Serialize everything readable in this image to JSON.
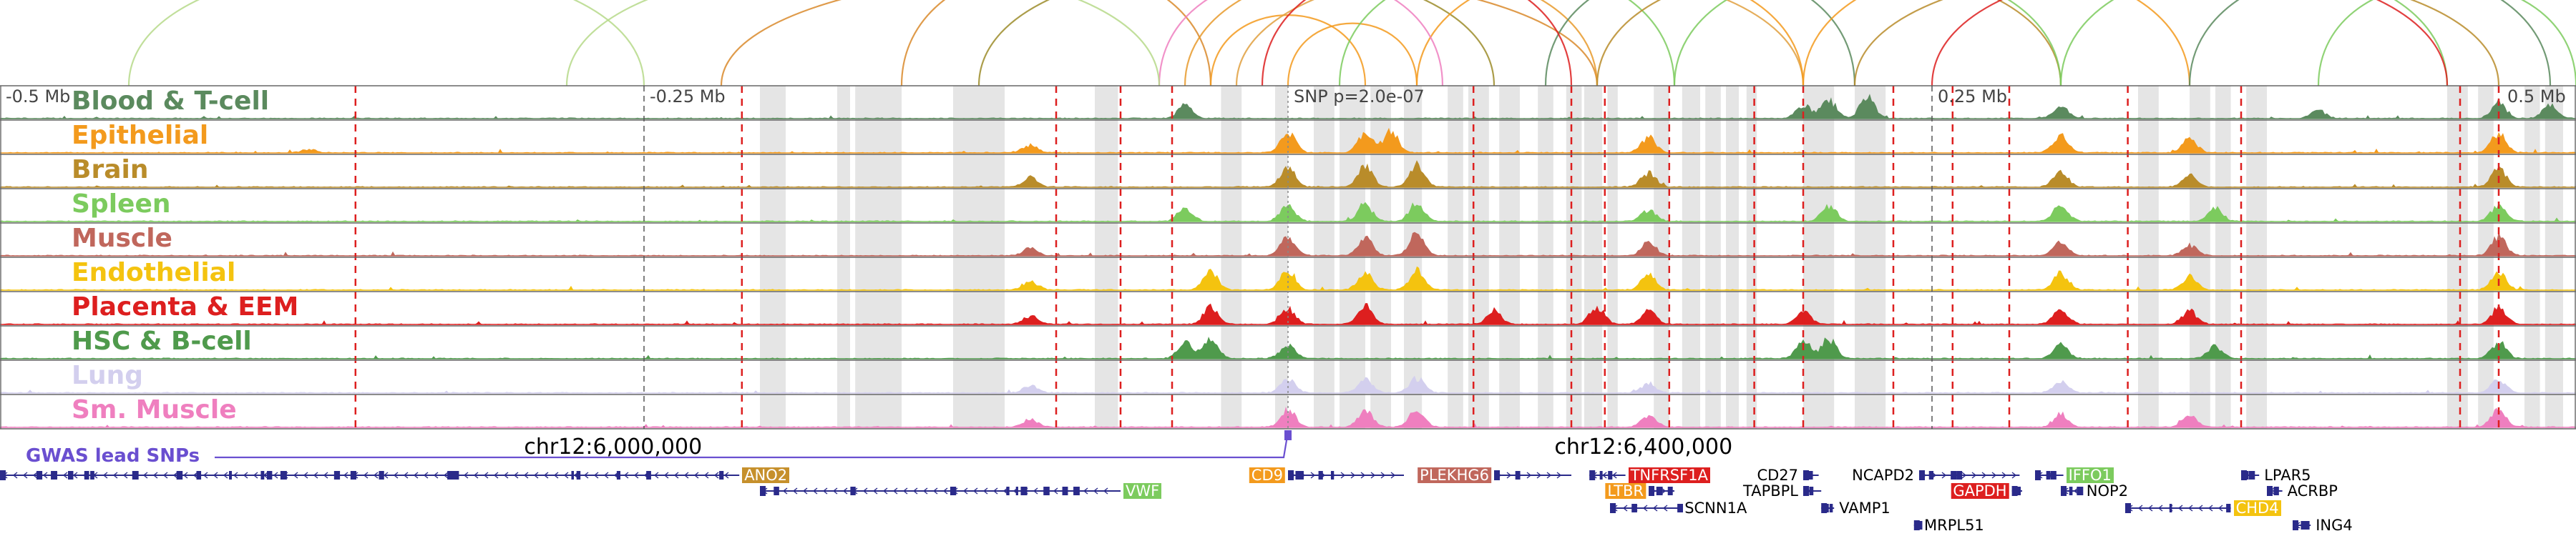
{
  "chart_data": {
    "type": "genome-browser",
    "locus_chromosome": "chr12",
    "x_range_relative_mb": [
      -0.5,
      0.5
    ],
    "relative_axis": [
      {
        "pos": -0.5,
        "label": "-0.5 Mb"
      },
      {
        "pos": -0.25,
        "label": "-0.25 Mb"
      },
      {
        "pos": 0.0,
        "label": "SNP p=2.0e-07"
      },
      {
        "pos": 0.25,
        "label": "0.25 Mb"
      },
      {
        "pos": 0.5,
        "label": "0.5 Mb"
      }
    ],
    "coordinate_axis": [
      {
        "pos": -0.296,
        "label": "chr12:6,000,000"
      },
      {
        "pos": 0.104,
        "label": "chr12:6,400,000"
      }
    ],
    "tracks": [
      {
        "name": "Blood & T-cell",
        "color": "#5b8a5e",
        "peaks": [
          [
            -0.04,
            0.55
          ],
          [
            0.2,
            0.6
          ],
          [
            0.21,
            0.8
          ],
          [
            0.225,
            0.95
          ],
          [
            0.3,
            0.5
          ],
          [
            0.4,
            0.35
          ],
          [
            0.47,
            0.7
          ],
          [
            0.49,
            0.6
          ]
        ]
      },
      {
        "name": "Epithelial",
        "color": "#f39a1d",
        "peaks": [
          [
            -0.38,
            0.15
          ],
          [
            -0.1,
            0.35
          ],
          [
            0.0,
            0.9
          ],
          [
            0.03,
            0.85
          ],
          [
            0.04,
            0.95
          ],
          [
            0.14,
            0.7
          ],
          [
            0.3,
            0.75
          ],
          [
            0.35,
            0.6
          ],
          [
            0.47,
            0.85
          ]
        ]
      },
      {
        "name": "Brain",
        "color": "#b98c2a",
        "peaks": [
          [
            -0.1,
            0.4
          ],
          [
            0.0,
            0.85
          ],
          [
            0.03,
            0.9
          ],
          [
            0.05,
            0.95
          ],
          [
            0.14,
            0.6
          ],
          [
            0.3,
            0.65
          ],
          [
            0.35,
            0.5
          ],
          [
            0.47,
            0.8
          ]
        ]
      },
      {
        "name": "Spleen",
        "color": "#7ccb5e",
        "peaks": [
          [
            -0.04,
            0.55
          ],
          [
            0.0,
            0.7
          ],
          [
            0.03,
            0.75
          ],
          [
            0.05,
            0.8
          ],
          [
            0.14,
            0.5
          ],
          [
            0.21,
            0.7
          ],
          [
            0.3,
            0.7
          ],
          [
            0.36,
            0.55
          ],
          [
            0.47,
            0.75
          ]
        ]
      },
      {
        "name": "Muscle",
        "color": "#c0675c",
        "peaks": [
          [
            -0.1,
            0.3
          ],
          [
            0.0,
            0.8
          ],
          [
            0.03,
            0.75
          ],
          [
            0.05,
            0.95
          ],
          [
            0.14,
            0.55
          ],
          [
            0.3,
            0.6
          ],
          [
            0.35,
            0.45
          ],
          [
            0.47,
            0.85
          ]
        ]
      },
      {
        "name": "Endothelial",
        "color": "#f4c30f",
        "peaks": [
          [
            -0.1,
            0.4
          ],
          [
            -0.03,
            0.8
          ],
          [
            0.0,
            0.85
          ],
          [
            0.03,
            0.8
          ],
          [
            0.05,
            0.9
          ],
          [
            0.14,
            0.65
          ],
          [
            0.3,
            0.7
          ],
          [
            0.35,
            0.6
          ],
          [
            0.47,
            0.8
          ]
        ]
      },
      {
        "name": "Placenta & EEM",
        "color": "#dd1f1f",
        "peaks": [
          [
            -0.1,
            0.35
          ],
          [
            -0.03,
            0.75
          ],
          [
            0.0,
            0.7
          ],
          [
            0.03,
            0.8
          ],
          [
            0.08,
            0.6
          ],
          [
            0.12,
            0.75
          ],
          [
            0.14,
            0.65
          ],
          [
            0.2,
            0.55
          ],
          [
            0.3,
            0.65
          ],
          [
            0.35,
            0.55
          ],
          [
            0.47,
            0.7
          ]
        ]
      },
      {
        "name": "HSC & B-cell",
        "color": "#4f9a4c",
        "peaks": [
          [
            -0.04,
            0.7
          ],
          [
            -0.03,
            0.8
          ],
          [
            0.0,
            0.6
          ],
          [
            0.2,
            0.75
          ],
          [
            0.21,
            0.85
          ],
          [
            0.3,
            0.6
          ],
          [
            0.36,
            0.5
          ],
          [
            0.47,
            0.7
          ]
        ]
      },
      {
        "name": "Lung",
        "color": "#d3cfee",
        "peaks": [
          [
            -0.1,
            0.3
          ],
          [
            0.0,
            0.6
          ],
          [
            0.03,
            0.55
          ],
          [
            0.05,
            0.65
          ],
          [
            0.14,
            0.4
          ],
          [
            0.3,
            0.5
          ],
          [
            0.47,
            0.55
          ]
        ]
      },
      {
        "name": "Sm. Muscle",
        "color": "#ef7fbf",
        "peaks": [
          [
            -0.1,
            0.35
          ],
          [
            0.0,
            0.75
          ],
          [
            0.03,
            0.7
          ],
          [
            0.05,
            0.85
          ],
          [
            0.14,
            0.5
          ],
          [
            0.3,
            0.6
          ],
          [
            0.35,
            0.5
          ],
          [
            0.47,
            0.75
          ]
        ]
      }
    ],
    "highlight_regions": [
      [
        -0.205,
        -0.195
      ],
      [
        -0.175,
        -0.17
      ],
      [
        -0.168,
        -0.16
      ],
      [
        -0.16,
        -0.15
      ],
      [
        -0.13,
        -0.12
      ],
      [
        -0.12,
        -0.11
      ],
      [
        -0.075,
        -0.066
      ],
      [
        -0.026,
        -0.018
      ],
      [
        -0.005,
        0.0
      ],
      [
        0.01,
        0.018
      ],
      [
        0.02,
        0.03
      ],
      [
        0.032,
        0.04
      ],
      [
        0.045,
        0.052
      ],
      [
        0.062,
        0.068
      ],
      [
        0.07,
        0.078
      ],
      [
        0.082,
        0.09
      ],
      [
        0.097,
        0.103
      ],
      [
        0.108,
        0.114
      ],
      [
        0.115,
        0.122
      ],
      [
        0.124,
        0.128
      ],
      [
        0.142,
        0.148
      ],
      [
        0.153,
        0.16
      ],
      [
        0.162,
        0.168
      ],
      [
        0.17,
        0.175
      ],
      [
        0.178,
        0.182
      ],
      [
        0.2,
        0.212
      ],
      [
        0.22,
        0.232
      ],
      [
        0.33,
        0.338
      ],
      [
        0.35,
        0.358
      ],
      [
        0.36,
        0.366
      ],
      [
        0.372,
        0.38
      ],
      [
        0.45,
        0.458
      ],
      [
        0.462,
        0.468
      ],
      [
        0.48,
        0.486
      ],
      [
        0.488,
        0.495
      ]
    ],
    "boundary_lines": [
      -0.362,
      -0.212,
      -0.09,
      -0.065,
      -0.045,
      0.072,
      0.11,
      0.123,
      0.148,
      0.181,
      0.2,
      0.235,
      0.258,
      0.28,
      0.326,
      0.37,
      0.455,
      0.47
    ],
    "snp_position": 0.0,
    "gwas_label": "GWAS lead SNPs",
    "loops": [
      {
        "from": -0.22,
        "to": 0.12,
        "color": "#d9892b"
      },
      {
        "from": -0.15,
        "to": -0.03,
        "color": "#d9892b"
      },
      {
        "from": -0.12,
        "to": 0.08,
        "color": "#9c8c2a"
      },
      {
        "from": -0.04,
        "to": 0.12,
        "color": "#e89a2b"
      },
      {
        "from": -0.03,
        "to": 0.03,
        "color": "#f39a1d"
      },
      {
        "from": -0.02,
        "to": 0.2,
        "color": "#e0a040"
      },
      {
        "from": 0.0,
        "to": 0.05,
        "color": "#f39a1d"
      },
      {
        "from": 0.02,
        "to": 0.15,
        "color": "#7ccb5e"
      },
      {
        "from": 0.05,
        "to": 0.2,
        "color": "#f39a1d"
      },
      {
        "from": 0.1,
        "to": 0.22,
        "color": "#5b8a5e"
      },
      {
        "from": 0.12,
        "to": 0.3,
        "color": "#b98c2a"
      },
      {
        "from": 0.15,
        "to": 0.3,
        "color": "#7ccb5e"
      },
      {
        "from": 0.2,
        "to": 0.35,
        "color": "#f39a1d"
      },
      {
        "from": 0.22,
        "to": 0.47,
        "color": "#b98c2a"
      },
      {
        "from": 0.3,
        "to": 0.45,
        "color": "#7ccb5e"
      },
      {
        "from": 0.35,
        "to": 0.49,
        "color": "#5b8a5e"
      },
      {
        "from": -0.05,
        "to": 0.06,
        "color": "#ef7fbf"
      },
      {
        "from": -0.01,
        "to": 0.11,
        "color": "#dd1f1f"
      },
      {
        "from": 0.25,
        "to": 0.45,
        "color": "#dd1f1f"
      },
      {
        "from": -0.28,
        "to": -0.05,
        "color": "#b6d98a"
      },
      {
        "from": -0.45,
        "to": -0.25,
        "color": "#b6d98a"
      },
      {
        "from": 0.4,
        "to": 0.5,
        "color": "#7ccb5e"
      }
    ],
    "genes": [
      {
        "name": "ANO2",
        "start": -0.5,
        "end": -0.213,
        "strand": "-",
        "row": 0,
        "label_pos": -0.213,
        "label_side": "right",
        "highlight_color": "#c6902c"
      },
      {
        "name": "VWF",
        "start": -0.205,
        "end": -0.065,
        "strand": "-",
        "row": 1,
        "label_pos": -0.065,
        "label_side": "right",
        "highlight_color": "#7ccb5e"
      },
      {
        "name": "CD9",
        "start": 0.0,
        "end": 0.045,
        "strand": "+",
        "row": 0,
        "label_pos": 0.0,
        "label_side": "left",
        "highlight_color": "#f39a1d"
      },
      {
        "name": "PLEKHG6",
        "start": 0.08,
        "end": 0.11,
        "strand": "+",
        "row": 0,
        "label_pos": 0.08,
        "label_side": "left",
        "highlight_color": "#c0675c"
      },
      {
        "name": "TNFRSF1A",
        "start": 0.117,
        "end": 0.131,
        "strand": "-",
        "row": 0,
        "label_pos": 0.131,
        "label_side": "right",
        "highlight_color": "#dd1f1f"
      },
      {
        "name": "LTBR",
        "start": 0.14,
        "end": 0.15,
        "strand": "+",
        "row": 1,
        "label_pos": 0.14,
        "label_side": "left",
        "highlight_color": "#f39a1d"
      },
      {
        "name": "SCNN1A",
        "start": 0.125,
        "end": 0.152,
        "strand": "-",
        "row": 2,
        "label_pos": 0.152,
        "label_side": "right",
        "highlight_color": ""
      },
      {
        "name": "CD27",
        "start": 0.2,
        "end": 0.206,
        "strand": "+",
        "row": 0,
        "label_pos": 0.2,
        "label_side": "left",
        "highlight_color": ""
      },
      {
        "name": "TAPBPL",
        "start": 0.2,
        "end": 0.207,
        "strand": "+",
        "row": 1,
        "label_pos": 0.2,
        "label_side": "left",
        "highlight_color": ""
      },
      {
        "name": "VAMP1",
        "start": 0.207,
        "end": 0.212,
        "strand": "-",
        "row": 2,
        "label_pos": 0.212,
        "label_side": "right",
        "highlight_color": ""
      },
      {
        "name": "MRPL51",
        "start": 0.243,
        "end": 0.245,
        "strand": "-",
        "row": 3,
        "label_pos": 0.245,
        "label_side": "right",
        "highlight_color": ""
      },
      {
        "name": "NCAPD2",
        "start": 0.245,
        "end": 0.284,
        "strand": "+",
        "row": 0,
        "label_pos": 0.245,
        "label_side": "left",
        "highlight_color": ""
      },
      {
        "name": "GAPDH",
        "start": 0.281,
        "end": 0.285,
        "strand": "+",
        "row": 1,
        "label_pos": 0.281,
        "label_side": "left",
        "highlight_color": "#dd1f1f"
      },
      {
        "name": "IFFO1",
        "start": 0.29,
        "end": 0.301,
        "strand": "-",
        "row": 0,
        "label_pos": 0.301,
        "label_side": "right",
        "highlight_color": "#7ccb5e"
      },
      {
        "name": "NOP2",
        "start": 0.3,
        "end": 0.308,
        "strand": "-",
        "row": 1,
        "label_pos": 0.308,
        "label_side": "right",
        "highlight_color": ""
      },
      {
        "name": "CHD4",
        "start": 0.325,
        "end": 0.366,
        "strand": "-",
        "row": 2,
        "label_pos": 0.366,
        "label_side": "right",
        "highlight_color": "#f4c30f"
      },
      {
        "name": "LPAR5",
        "start": 0.37,
        "end": 0.377,
        "strand": "-",
        "row": 0,
        "label_pos": 0.377,
        "label_side": "right",
        "highlight_color": ""
      },
      {
        "name": "ACRBP",
        "start": 0.38,
        "end": 0.386,
        "strand": "-",
        "row": 1,
        "label_pos": 0.386,
        "label_side": "right",
        "highlight_color": ""
      },
      {
        "name": "ING4",
        "start": 0.39,
        "end": 0.397,
        "strand": "-",
        "row": 3,
        "label_pos": 0.397,
        "label_side": "right",
        "highlight_color": ""
      }
    ]
  }
}
